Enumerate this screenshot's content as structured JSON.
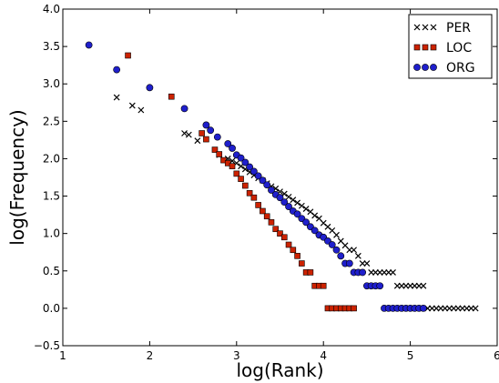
{
  "chart_data": {
    "type": "scatter",
    "xlabel": "log(Rank)",
    "ylabel": "log(Frequency)",
    "xlim": [
      1,
      6
    ],
    "ylim": [
      -0.5,
      4.0
    ],
    "xticks": [
      "1",
      "2",
      "3",
      "4",
      "5",
      "6"
    ],
    "yticks": [
      "−0.5",
      "0.0",
      "0.5",
      "1.0",
      "1.5",
      "2.0",
      "2.5",
      "3.0",
      "3.5",
      "4.0"
    ],
    "grid": false,
    "legend_position": "top-right",
    "colors": {
      "PER": "#000000",
      "LOC": "#cc2200",
      "ORG": "#1f1fcc"
    },
    "series": [
      {
        "name": "PER",
        "marker": "x",
        "points": [
          [
            1.62,
            2.82
          ],
          [
            1.8,
            2.71
          ],
          [
            1.9,
            2.65
          ],
          [
            2.4,
            2.34
          ],
          [
            2.45,
            2.32
          ],
          [
            2.55,
            2.24
          ],
          [
            2.8,
            2.05
          ],
          [
            2.9,
            2.0
          ],
          [
            2.95,
            1.97
          ],
          [
            3.0,
            1.94
          ],
          [
            3.05,
            1.9
          ],
          [
            3.1,
            1.86
          ],
          [
            3.15,
            1.82
          ],
          [
            3.2,
            1.78
          ],
          [
            3.25,
            1.74
          ],
          [
            3.3,
            1.71
          ],
          [
            3.35,
            1.67
          ],
          [
            3.4,
            1.63
          ],
          [
            3.45,
            1.6
          ],
          [
            3.5,
            1.56
          ],
          [
            3.55,
            1.53
          ],
          [
            3.6,
            1.49
          ],
          [
            3.65,
            1.45
          ],
          [
            3.7,
            1.41
          ],
          [
            3.75,
            1.37
          ],
          [
            3.8,
            1.33
          ],
          [
            3.85,
            1.29
          ],
          [
            3.9,
            1.24
          ],
          [
            3.95,
            1.2
          ],
          [
            4.0,
            1.14
          ],
          [
            4.05,
            1.09
          ],
          [
            4.1,
            1.04
          ],
          [
            4.15,
            0.98
          ],
          [
            4.2,
            0.9
          ],
          [
            4.25,
            0.84
          ],
          [
            4.3,
            0.78
          ],
          [
            4.35,
            0.78
          ],
          [
            4.4,
            0.7
          ],
          [
            4.45,
            0.6
          ],
          [
            4.5,
            0.6
          ],
          [
            4.55,
            0.48
          ],
          [
            4.6,
            0.48
          ],
          [
            4.65,
            0.48
          ],
          [
            4.7,
            0.48
          ],
          [
            4.75,
            0.48
          ],
          [
            4.8,
            0.48
          ],
          [
            4.85,
            0.3
          ],
          [
            4.9,
            0.3
          ],
          [
            4.95,
            0.3
          ],
          [
            5.0,
            0.3
          ],
          [
            5.05,
            0.3
          ],
          [
            5.1,
            0.3
          ],
          [
            5.15,
            0.3
          ],
          [
            5.2,
            0.0
          ],
          [
            5.25,
            0.0
          ],
          [
            5.3,
            0.0
          ],
          [
            5.35,
            0.0
          ],
          [
            5.4,
            0.0
          ],
          [
            5.45,
            0.0
          ],
          [
            5.5,
            0.0
          ],
          [
            5.55,
            0.0
          ],
          [
            5.6,
            0.0
          ],
          [
            5.65,
            0.0
          ],
          [
            5.7,
            0.0
          ],
          [
            5.75,
            0.0
          ]
        ]
      },
      {
        "name": "LOC",
        "marker": "s",
        "points": [
          [
            1.75,
            3.38
          ],
          [
            2.25,
            2.83
          ],
          [
            2.6,
            2.34
          ],
          [
            2.65,
            2.26
          ],
          [
            2.75,
            2.12
          ],
          [
            2.8,
            2.06
          ],
          [
            2.85,
            1.98
          ],
          [
            2.9,
            1.94
          ],
          [
            2.95,
            1.9
          ],
          [
            3.0,
            1.8
          ],
          [
            3.05,
            1.73
          ],
          [
            3.1,
            1.64
          ],
          [
            3.15,
            1.54
          ],
          [
            3.2,
            1.48
          ],
          [
            3.25,
            1.38
          ],
          [
            3.3,
            1.3
          ],
          [
            3.35,
            1.23
          ],
          [
            3.4,
            1.15
          ],
          [
            3.45,
            1.06
          ],
          [
            3.5,
            1.0
          ],
          [
            3.55,
            0.95
          ],
          [
            3.6,
            0.85
          ],
          [
            3.65,
            0.78
          ],
          [
            3.7,
            0.7
          ],
          [
            3.75,
            0.6
          ],
          [
            3.8,
            0.48
          ],
          [
            3.85,
            0.48
          ],
          [
            3.9,
            0.3
          ],
          [
            3.95,
            0.3
          ],
          [
            4.0,
            0.3
          ],
          [
            4.05,
            0.0
          ],
          [
            4.1,
            0.0
          ],
          [
            4.15,
            0.0
          ],
          [
            4.2,
            0.0
          ],
          [
            4.25,
            0.0
          ],
          [
            4.3,
            0.0
          ],
          [
            4.35,
            0.0
          ]
        ]
      },
      {
        "name": "ORG",
        "marker": "o",
        "points": [
          [
            1.3,
            3.52
          ],
          [
            1.62,
            3.19
          ],
          [
            2.0,
            2.95
          ],
          [
            2.4,
            2.67
          ],
          [
            2.65,
            2.45
          ],
          [
            2.7,
            2.38
          ],
          [
            2.78,
            2.29
          ],
          [
            2.9,
            2.2
          ],
          [
            2.95,
            2.14
          ],
          [
            3.0,
            2.05
          ],
          [
            3.05,
            2.01
          ],
          [
            3.1,
            1.95
          ],
          [
            3.15,
            1.89
          ],
          [
            3.2,
            1.83
          ],
          [
            3.25,
            1.77
          ],
          [
            3.3,
            1.71
          ],
          [
            3.35,
            1.65
          ],
          [
            3.4,
            1.58
          ],
          [
            3.45,
            1.52
          ],
          [
            3.5,
            1.48
          ],
          [
            3.55,
            1.42
          ],
          [
            3.6,
            1.36
          ],
          [
            3.65,
            1.3
          ],
          [
            3.7,
            1.26
          ],
          [
            3.75,
            1.2
          ],
          [
            3.8,
            1.15
          ],
          [
            3.85,
            1.09
          ],
          [
            3.9,
            1.04
          ],
          [
            3.95,
            0.98
          ],
          [
            4.0,
            0.95
          ],
          [
            4.05,
            0.9
          ],
          [
            4.1,
            0.85
          ],
          [
            4.15,
            0.78
          ],
          [
            4.2,
            0.7
          ],
          [
            4.25,
            0.6
          ],
          [
            4.3,
            0.6
          ],
          [
            4.35,
            0.48
          ],
          [
            4.4,
            0.48
          ],
          [
            4.45,
            0.48
          ],
          [
            4.5,
            0.3
          ],
          [
            4.55,
            0.3
          ],
          [
            4.6,
            0.3
          ],
          [
            4.65,
            0.3
          ],
          [
            4.7,
            0.0
          ],
          [
            4.75,
            0.0
          ],
          [
            4.8,
            0.0
          ],
          [
            4.85,
            0.0
          ],
          [
            4.9,
            0.0
          ],
          [
            4.95,
            0.0
          ],
          [
            5.0,
            0.0
          ],
          [
            5.05,
            0.0
          ],
          [
            5.1,
            0.0
          ],
          [
            5.15,
            0.0
          ]
        ]
      }
    ]
  }
}
